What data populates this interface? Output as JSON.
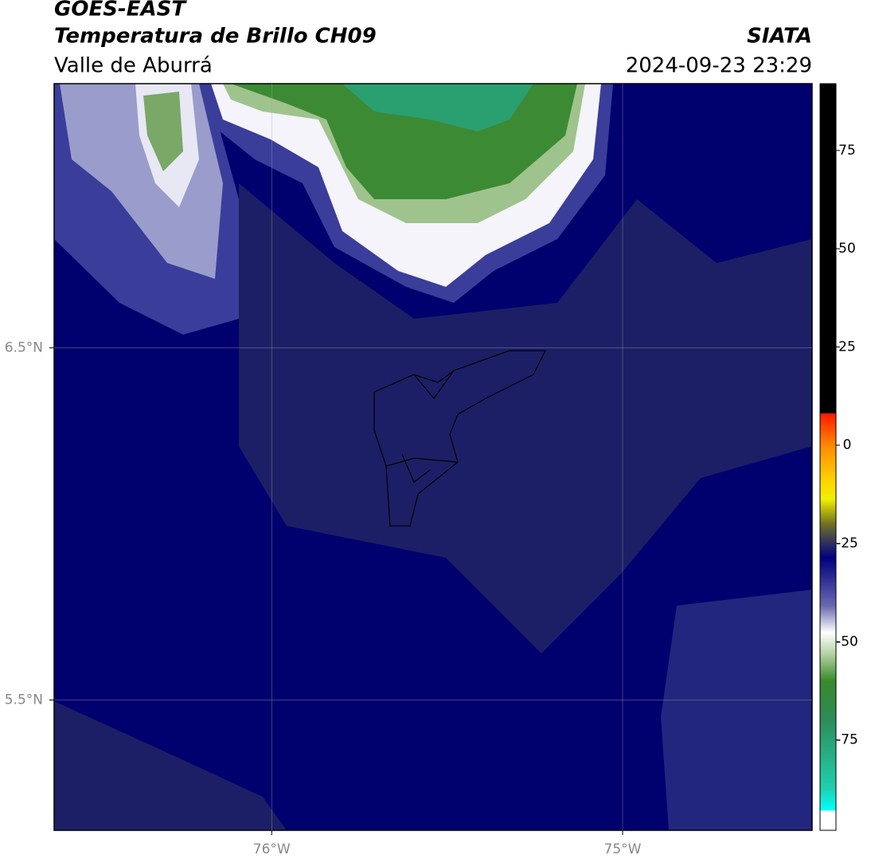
{
  "header": {
    "title": "GOES-EAST",
    "subtitle": "Temperatura de Brillo CH09",
    "region": "Valle de Aburrá",
    "source": "SIATA",
    "datetime": "2024-09-23 23:29"
  },
  "map": {
    "lonlim": [
      -76.62,
      -74.46
    ],
    "latlim": [
      5.13,
      7.25
    ],
    "lonticks": [
      {
        "value": -76,
        "label": "76°W"
      },
      {
        "value": -75,
        "label": "75°W"
      }
    ],
    "latticks": [
      {
        "value": 6.5,
        "label": "6.5°N"
      },
      {
        "value": 5.5,
        "label": "5.5°N"
      }
    ]
  },
  "colorbar": {
    "lim": [
      -98,
      92
    ],
    "ticks": [
      75,
      50,
      25,
      0,
      -25,
      -50,
      -75
    ]
  }
}
